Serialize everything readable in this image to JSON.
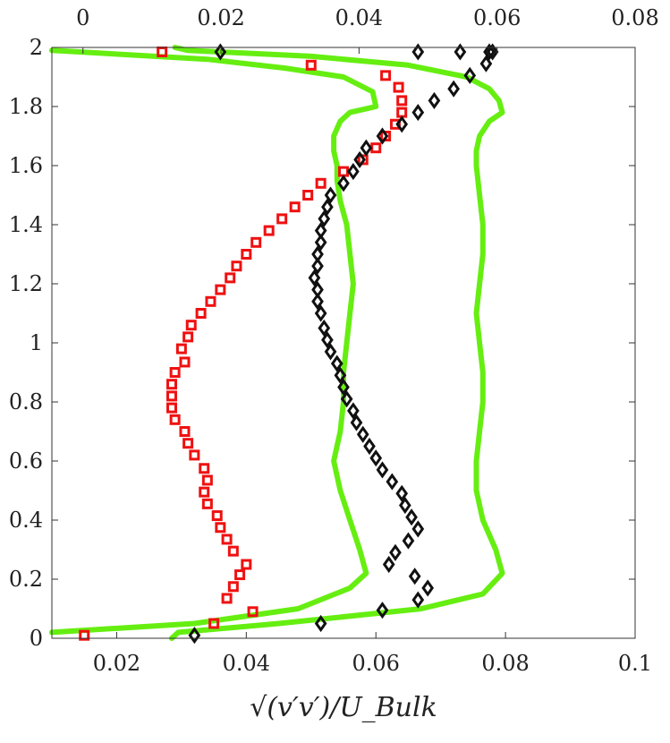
{
  "chart_data": {
    "type": "scatter",
    "title": "",
    "xlabel": "√(v′v′)/U_Bulk",
    "ylabel": "",
    "xlim": [
      0.01,
      0.1
    ],
    "ylim": [
      0,
      2
    ],
    "x_top_lim": [
      -0.0045,
      0.08
    ],
    "grid": false,
    "x_ticks": [
      0.02,
      0.04,
      0.06,
      0.08,
      0.1
    ],
    "x_tick_labels": [
      "0.02",
      "0.04",
      "0.06",
      "0.08",
      "0.1"
    ],
    "x_top_ticks": [
      0,
      0.02,
      0.04,
      0.06,
      0.08
    ],
    "x_top_tick_labels": [
      "0",
      "0.02",
      "0.04",
      "0.06",
      "0.08"
    ],
    "y_ticks": [
      0,
      0.2,
      0.4,
      0.6,
      0.8,
      1,
      1.2,
      1.4,
      1.6,
      1.8,
      2
    ],
    "y_tick_labels": [
      "0",
      "0.2",
      "0.4",
      "0.6",
      "0.8",
      "1",
      "1.2",
      "1.4",
      "1.6",
      "1.8",
      "2"
    ],
    "series": [
      {
        "marker": "line",
        "color": "#66ee11",
        "x": [
          0.01,
          0.032,
          0.048,
          0.056,
          0.0585,
          0.0575,
          0.056,
          0.0545,
          0.0535,
          0.0545,
          0.055,
          0.055,
          0.0555,
          0.056,
          0.0565,
          0.056,
          0.0555,
          0.0545,
          0.054,
          0.054,
          0.0535,
          0.0535,
          0.0545,
          0.056,
          0.058,
          0.06,
          0.0595,
          0.055,
          0.046,
          0.034,
          0.01
        ],
        "y": [
          0.02,
          0.05,
          0.1,
          0.17,
          0.22,
          0.3,
          0.4,
          0.5,
          0.6,
          0.7,
          0.8,
          0.9,
          1.0,
          1.1,
          1.2,
          1.3,
          1.4,
          1.48,
          1.55,
          1.6,
          1.65,
          1.7,
          1.75,
          1.78,
          1.79,
          1.8,
          1.85,
          1.9,
          1.93,
          1.96,
          1.99
        ]
      },
      {
        "marker": "line",
        "color": "#66ee11",
        "x": [
          0.0285,
          0.0295,
          0.045,
          0.067,
          0.0765,
          0.0795,
          0.0785,
          0.0765,
          0.0755,
          0.0755,
          0.076,
          0.0765,
          0.0765,
          0.076,
          0.0755,
          0.076,
          0.0765,
          0.0765,
          0.076,
          0.0755,
          0.0755,
          0.076,
          0.0775,
          0.0795,
          0.079,
          0.0775,
          0.074,
          0.065,
          0.05,
          0.031,
          0.029
        ],
        "y": [
          0.0,
          0.02,
          0.05,
          0.1,
          0.15,
          0.22,
          0.3,
          0.4,
          0.5,
          0.6,
          0.7,
          0.8,
          0.9,
          1.0,
          1.1,
          1.2,
          1.3,
          1.4,
          1.5,
          1.6,
          1.65,
          1.7,
          1.75,
          1.78,
          1.82,
          1.86,
          1.9,
          1.94,
          1.97,
          1.99,
          2.0
        ]
      },
      {
        "marker": "square",
        "color": "#ee1111",
        "x": [
          0.015,
          0.035,
          0.041,
          0.037,
          0.038,
          0.039,
          0.04,
          0.038,
          0.037,
          0.036,
          0.0355,
          0.034,
          0.0335,
          0.034,
          0.0335,
          0.032,
          0.031,
          0.0305,
          0.029,
          0.0285,
          0.0285,
          0.0285,
          0.029,
          0.0305,
          0.03,
          0.031,
          0.0315,
          0.033,
          0.0345,
          0.036,
          0.0375,
          0.0385,
          0.04,
          0.0415,
          0.0435,
          0.0455,
          0.0475,
          0.0495,
          0.0515,
          0.055,
          0.058,
          0.06,
          0.0615,
          0.063,
          0.064,
          0.064,
          0.0635,
          0.0615,
          0.05,
          0.027
        ],
        "y": [
          0.01,
          0.05,
          0.09,
          0.135,
          0.175,
          0.215,
          0.25,
          0.295,
          0.335,
          0.375,
          0.415,
          0.455,
          0.495,
          0.535,
          0.575,
          0.62,
          0.66,
          0.7,
          0.74,
          0.78,
          0.82,
          0.86,
          0.9,
          0.935,
          0.98,
          1.02,
          1.06,
          1.1,
          1.14,
          1.18,
          1.22,
          1.26,
          1.3,
          1.34,
          1.38,
          1.42,
          1.46,
          1.5,
          1.54,
          1.58,
          1.62,
          1.66,
          1.7,
          1.74,
          1.78,
          1.82,
          1.865,
          1.905,
          1.94,
          1.985
        ]
      },
      {
        "marker": "diamond",
        "color": "#111111",
        "x": [
          0.032,
          0.0515,
          0.061,
          0.0665,
          0.068,
          0.066,
          0.062,
          0.063,
          0.065,
          0.0665,
          0.0655,
          0.0645,
          0.064,
          0.0625,
          0.061,
          0.06,
          0.059,
          0.058,
          0.057,
          0.0565,
          0.0555,
          0.055,
          0.0545,
          0.054,
          0.053,
          0.0525,
          0.052,
          0.0515,
          0.051,
          0.051,
          0.0505,
          0.051,
          0.051,
          0.0515,
          0.0515,
          0.052,
          0.0525,
          0.053,
          0.055,
          0.0565,
          0.0575,
          0.0585,
          0.061,
          0.064,
          0.0665,
          0.069,
          0.072,
          0.0745,
          0.077,
          0.078,
          0.0775,
          0.073,
          0.0665,
          0.036
        ],
        "y": [
          0.01,
          0.05,
          0.095,
          0.13,
          0.17,
          0.21,
          0.25,
          0.29,
          0.33,
          0.37,
          0.41,
          0.45,
          0.49,
          0.53,
          0.57,
          0.61,
          0.65,
          0.69,
          0.73,
          0.77,
          0.81,
          0.85,
          0.89,
          0.93,
          0.97,
          1.01,
          1.05,
          1.1,
          1.14,
          1.18,
          1.22,
          1.26,
          1.3,
          1.34,
          1.38,
          1.42,
          1.46,
          1.5,
          1.54,
          1.58,
          1.62,
          1.66,
          1.7,
          1.74,
          1.78,
          1.82,
          1.86,
          1.905,
          1.945,
          1.985,
          1.985,
          1.985,
          1.985,
          1.985
        ]
      }
    ]
  }
}
